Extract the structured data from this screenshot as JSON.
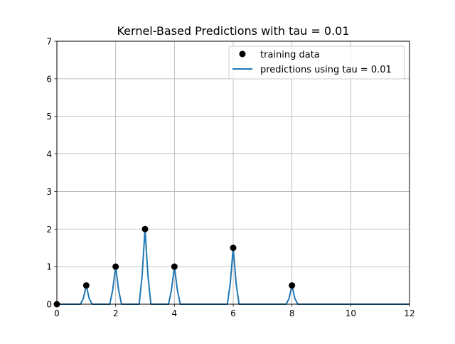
{
  "chart_data": {
    "type": "line",
    "title": "Kernel-Based Predictions with tau = 0.01",
    "xlabel": "",
    "ylabel": "",
    "xlim": [
      0,
      12
    ],
    "ylim": [
      0,
      7
    ],
    "xticks": [
      "0",
      "2",
      "4",
      "6",
      "8",
      "10",
      "12"
    ],
    "yticks": [
      "0",
      "1",
      "2",
      "3",
      "4",
      "5",
      "6",
      "7"
    ],
    "grid": true,
    "legend_position": "upper right",
    "colors": {
      "training": "#000000",
      "prediction": "#1f77b4",
      "grid": "#b0b0b0"
    },
    "series": [
      {
        "name": "training data",
        "kind": "scatter",
        "x": [
          0,
          1,
          2,
          3,
          4,
          6,
          8
        ],
        "y": [
          0,
          0.5,
          1,
          2,
          1,
          1.5,
          0.5
        ]
      },
      {
        "name": "predictions using tau = 0.01",
        "kind": "line",
        "x": [
          0,
          0.8,
          0.9,
          1.0,
          1.1,
          1.2,
          1.8,
          1.9,
          2.0,
          2.1,
          2.2,
          2.8,
          2.9,
          3.0,
          3.1,
          3.2,
          3.8,
          3.9,
          4.0,
          4.1,
          4.2,
          5.8,
          5.9,
          6.0,
          6.1,
          6.2,
          7.8,
          7.9,
          8.0,
          8.1,
          8.2,
          12
        ],
        "y": [
          0,
          0.0,
          0.15,
          0.5,
          0.15,
          0.0,
          0.0,
          0.38,
          1.0,
          0.38,
          0.0,
          0.0,
          0.75,
          2.0,
          0.75,
          0.0,
          0.0,
          0.38,
          1.0,
          0.38,
          0.0,
          0.0,
          0.55,
          1.5,
          0.55,
          0.0,
          0.0,
          0.15,
          0.5,
          0.15,
          0.0,
          0
        ]
      }
    ]
  }
}
